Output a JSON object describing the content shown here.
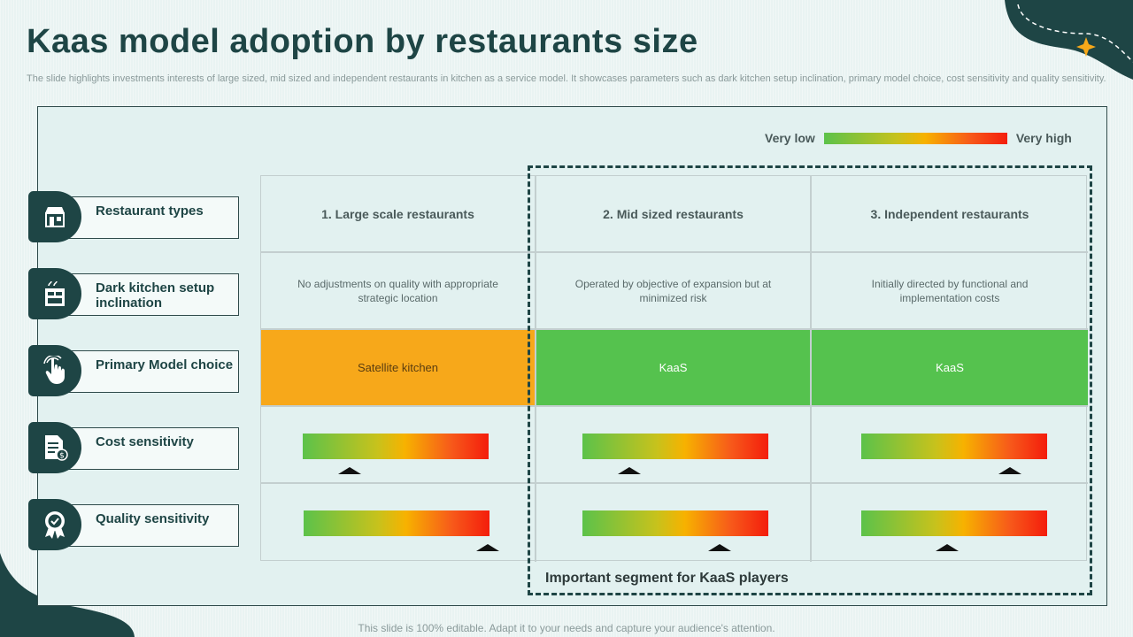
{
  "slide": {
    "title": "Kaas model adoption by restaurants size",
    "subtitle": "The slide highlights investments interests of large sized, mid sized and independent restaurants in kitchen as a service model. It showcases parameters such as dark kitchen setup inclination, primary model choice, cost sensitivity and quality sensitivity.",
    "footer": "This slide is 100% editable. Adapt it to your needs and capture your audience's attention."
  },
  "legend": {
    "low": "Very low",
    "high": "Very high"
  },
  "rows": [
    {
      "label": "Restaurant types",
      "icon": "storefront-icon"
    },
    {
      "label": "Dark kitchen setup inclination",
      "icon": "kitchen-icon"
    },
    {
      "label": "Primary Model choice",
      "icon": "hand-touch-icon"
    },
    {
      "label": "Cost sensitivity",
      "icon": "invoice-dollar-icon"
    },
    {
      "label": "Quality sensitivity",
      "icon": "quality-badge-icon"
    }
  ],
  "columns": [
    {
      "header": "1. Large scale restaurants",
      "description": "No adjustments on quality with  appropriate strategic location",
      "model": "Satellite kitchen",
      "cost_level": 0.25,
      "quality_level": 0.99
    },
    {
      "header": "2. Mid sized restaurants",
      "description": "Operated  by objective  of expansion but at minimized risk",
      "model": "KaaS",
      "cost_level": 0.25,
      "quality_level": 0.74
    },
    {
      "header": "3. Independent restaurants",
      "description": "Initially directed   by functional  and implementation  costs",
      "model": "KaaS",
      "cost_level": 0.8,
      "quality_level": 0.46
    }
  ],
  "highlight": {
    "label": "Important segment for KaaS players"
  },
  "colors": {
    "dark_teal": "#1e4545",
    "orange": "#f7a81a",
    "green": "#55c24e"
  }
}
